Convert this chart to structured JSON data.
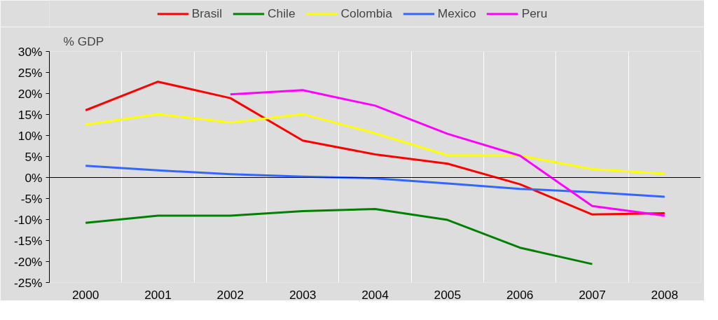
{
  "chart_data": {
    "type": "line",
    "ylabel": "% GDP",
    "categories": [
      "2000",
      "2001",
      "2002",
      "2003",
      "2004",
      "2005",
      "2006",
      "2007",
      "2008"
    ],
    "series": [
      {
        "name": "Brasil",
        "color": "#ff0000",
        "values": [
          16.0,
          22.8,
          18.9,
          8.8,
          5.5,
          3.3,
          -1.6,
          -8.8,
          -8.5
        ]
      },
      {
        "name": "Chile",
        "color": "#008000",
        "values": [
          -10.8,
          -9.1,
          -9.1,
          -8.0,
          -7.5,
          -10.1,
          -16.7,
          -20.6,
          null
        ]
      },
      {
        "name": "Colombia",
        "color": "#ffff00",
        "values": [
          12.6,
          15.1,
          13.1,
          15.1,
          10.5,
          5.3,
          5.2,
          2.0,
          0.9
        ]
      },
      {
        "name": "Mexico",
        "color": "#3366ff",
        "values": [
          2.8,
          1.7,
          0.8,
          0.2,
          -0.2,
          -1.4,
          -2.7,
          -3.5,
          -4.6
        ]
      },
      {
        "name": "Peru",
        "color": "#ff00ff",
        "values": [
          null,
          null,
          19.8,
          20.8,
          17.1,
          10.4,
          5.2,
          -6.8,
          -9.1
        ]
      }
    ],
    "ylim": [
      -25,
      30
    ],
    "yticks": [
      {
        "value": -25,
        "label": "-25%"
      },
      {
        "value": -20,
        "label": "-20%"
      },
      {
        "value": -15,
        "label": "-15%"
      },
      {
        "value": -10,
        "label": "-10%"
      },
      {
        "value": -5,
        "label": "-5%"
      },
      {
        "value": 0,
        "label": "0%"
      },
      {
        "value": 5,
        "label": "5%"
      },
      {
        "value": 10,
        "label": "10%"
      },
      {
        "value": 15,
        "label": "15%"
      },
      {
        "value": 20,
        "label": "20%"
      },
      {
        "value": 25,
        "label": "25%"
      },
      {
        "value": 30,
        "label": "30%"
      }
    ],
    "ref_lines": [
      {
        "axis": "y",
        "value": 0,
        "color": "#000000"
      }
    ],
    "grid": "x",
    "legend": "top",
    "marker": "none",
    "line_style": "solid"
  }
}
